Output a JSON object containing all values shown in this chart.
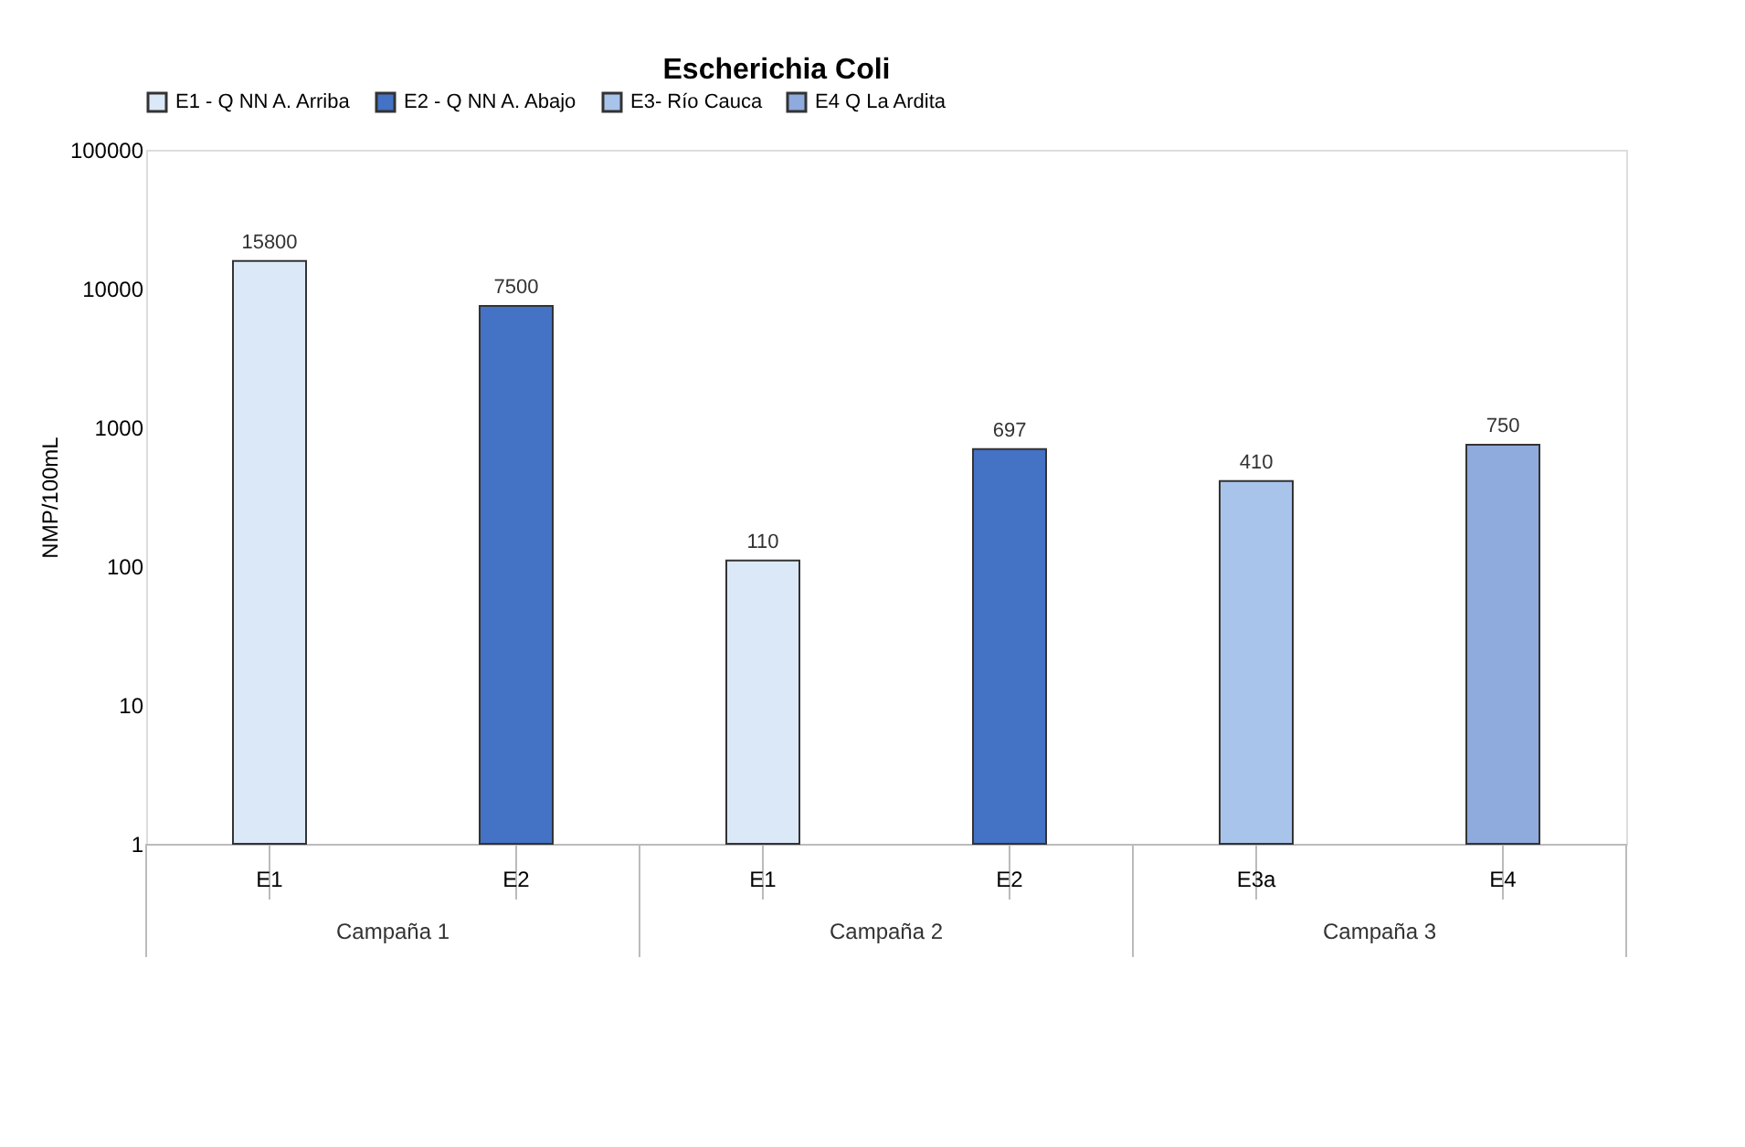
{
  "chart_data": {
    "type": "bar",
    "title": "Escherichia Coli",
    "ylabel": "NMP/100mL",
    "categories": [
      "E1",
      "E2",
      "E1",
      "E2",
      "E3a",
      "E4"
    ],
    "series": [
      {
        "name": "E1 - Q NN A. Arriba",
        "color": "#dbe8f8",
        "values": [
          15800,
          null,
          110,
          null,
          null,
          null
        ]
      },
      {
        "name": "E2 - Q NN A. Abajo",
        "color": "#4472c4",
        "values": [
          null,
          7500,
          null,
          697,
          null,
          null
        ]
      },
      {
        "name": "E3- Río Cauca",
        "color": "#a9c4eb",
        "values": [
          null,
          null,
          null,
          null,
          410,
          null
        ]
      },
      {
        "name": "E4 Q La Ardita",
        "color": "#8faadc",
        "values": [
          null,
          null,
          null,
          null,
          null,
          750
        ]
      }
    ],
    "annotations": [
      "Campaña 1",
      "Campaña 2",
      "Campaña 3"
    ],
    "log": true,
    "ylim": [
      1,
      100000
    ],
    "yticks": [
      1,
      10,
      100,
      1000,
      10000,
      100000
    ],
    "data_labels": true,
    "legend": "top",
    "grid": false
  }
}
